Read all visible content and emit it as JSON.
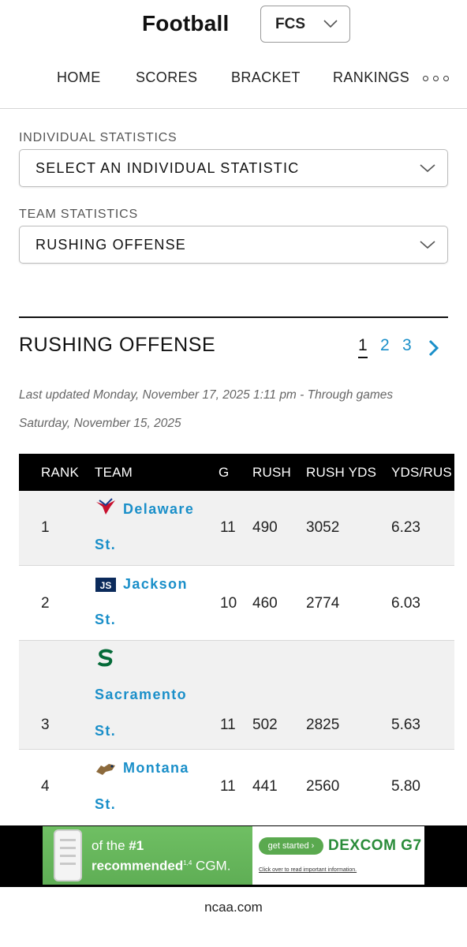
{
  "header": {
    "title": "Football",
    "division": "FCS",
    "nav": [
      "HOME",
      "SCORES",
      "BRACKET",
      "RANKINGS"
    ]
  },
  "filters": {
    "individual_label": "INDIVIDUAL STATISTICS",
    "individual_value": "SELECT AN INDIVIDUAL STATISTIC",
    "team_label": "TEAM STATISTICS",
    "team_value": "RUSHING OFFENSE"
  },
  "section": {
    "title": "RUSHING OFFENSE",
    "pages": [
      "1",
      "2",
      "3"
    ],
    "current_page": "1",
    "updated_line1": "Last updated  Monday, November 17, 2025 1:11 pm - Through games",
    "updated_line2": "Saturday, November 15, 2025"
  },
  "table": {
    "headers": [
      "RANK",
      "TEAM",
      "G",
      "RUSH",
      "RUSH YDS",
      "YDS/RUS"
    ],
    "rows": [
      {
        "rank": "1",
        "team_line1": "Delaware",
        "team_line2": "St.",
        "g": "11",
        "rush": "490",
        "rush_yds": "3052",
        "yds_rush": "6.23",
        "logo": "hornet-logo"
      },
      {
        "rank": "2",
        "team_line1": "Jackson",
        "team_line2": "St.",
        "g": "10",
        "rush": "460",
        "rush_yds": "2774",
        "yds_rush": "6.03",
        "logo": "js-monogram-logo"
      },
      {
        "rank": "3",
        "team_line1": "Sacramento",
        "team_line2": "St.",
        "g": "11",
        "rush": "502",
        "rush_yds": "2825",
        "yds_rush": "5.63",
        "logo": "s-hornet-logo"
      },
      {
        "rank": "4",
        "team_line1": "Montana",
        "team_line2": "St.",
        "g": "11",
        "rush": "441",
        "rush_yds": "2560",
        "yds_rush": "5.80",
        "logo": "bobcat-logo"
      }
    ]
  },
  "ad": {
    "headline_pre": "of the ",
    "headline_bold": "#1",
    "headline_post": "recommended",
    "headline_post_sup": "1,4",
    "headline_tail": " CGM.",
    "cta": "get started ›",
    "brand": "DEXCOM G7",
    "disclaimer": "Click over to read important information."
  },
  "footer": {
    "url": "ncaa.com"
  },
  "colors": {
    "link": "#1a8fc9",
    "table_header_bg": "#000000",
    "ad_green": "#5fae55"
  }
}
